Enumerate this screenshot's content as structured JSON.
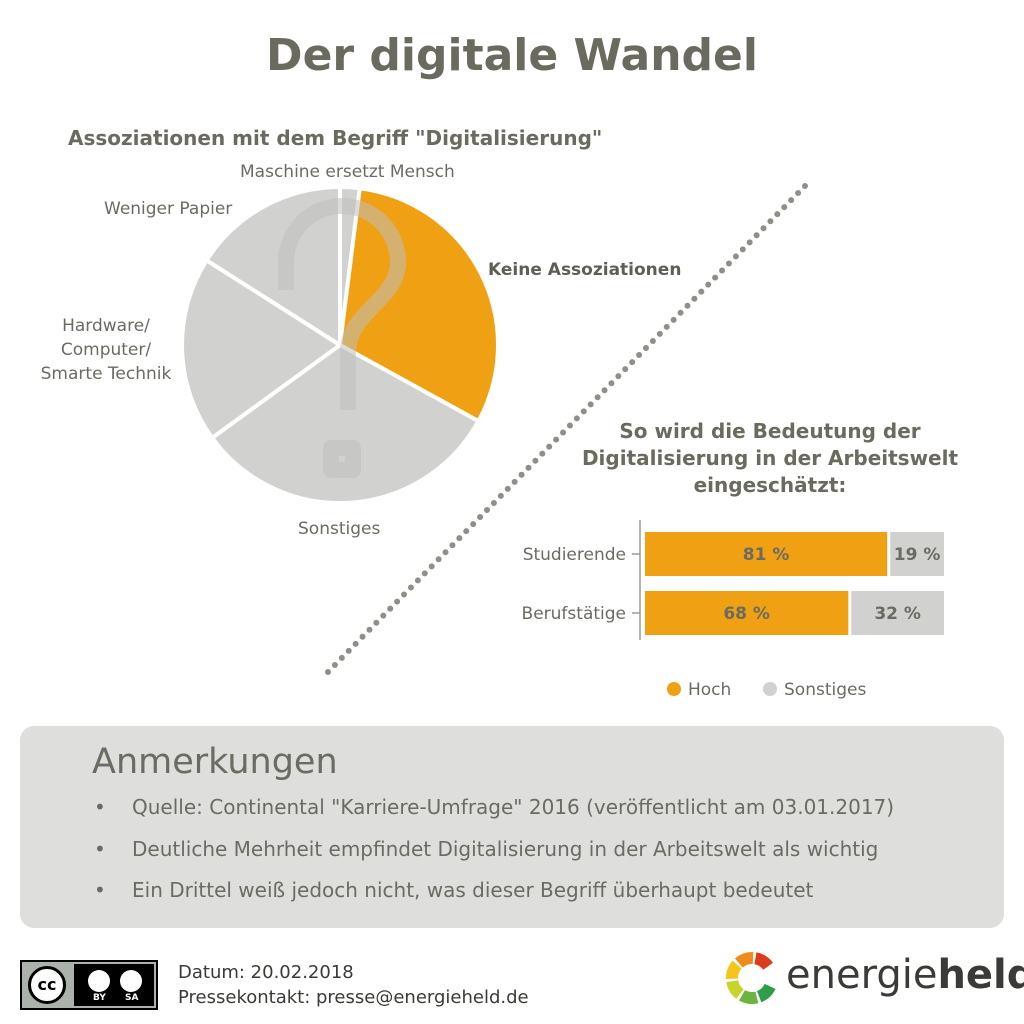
{
  "title": "Der digitale Wandel",
  "colors": {
    "orange": "#f0a013",
    "gray": "#d1d1d0",
    "text": "#6b6b62",
    "dots": "#8f8f88"
  },
  "chart_data": [
    {
      "type": "pie",
      "title": "Assoziationen mit dem Begriff \"Digitalisierung\"",
      "slices": [
        {
          "label": "Maschine ersetzt Mensch",
          "value": 2,
          "color": "#d1d1d0",
          "highlight": false
        },
        {
          "label": "Keine Assoziationen",
          "value": 31,
          "color": "#f0a013",
          "highlight": true
        },
        {
          "label": "Sonstiges",
          "value": 32,
          "color": "#d1d1d0",
          "highlight": false
        },
        {
          "label": "Hardware/ Computer/ Smarte Technik",
          "value": 19,
          "color": "#d1d1d0",
          "highlight": false
        },
        {
          "label": "Weniger Papier",
          "value": 16,
          "color": "#d1d1d0",
          "highlight": false
        }
      ]
    },
    {
      "type": "bar",
      "stacked": true,
      "orientation": "horizontal",
      "title": "So wird die Bedeutung der Digitalisierung in der Arbeitswelt eingeschätzt:",
      "categories": [
        "Studierende",
        "Berufstätige"
      ],
      "series": [
        {
          "name": "Hoch",
          "values": [
            81,
            68
          ],
          "labels": [
            "81 %",
            "68 %"
          ],
          "color": "#f0a013"
        },
        {
          "name": "Sonstiges",
          "values": [
            19,
            32
          ],
          "labels": [
            "19 %",
            "32 %"
          ],
          "color": "#d1d1d0"
        }
      ],
      "xlim": [
        0,
        100
      ],
      "legend": "bottom"
    }
  ],
  "pie_labels": {
    "maschine": "Maschine ersetzt Mensch",
    "keine": "Keine Assoziationen",
    "weniger": "Weniger Papier",
    "hardware_1": "Hardware/",
    "hardware_2": "Computer/",
    "hardware_3": "Smarte Technik",
    "sonstiges": "Sonstiges"
  },
  "bar_title_lines": [
    "So wird die Bedeutung der",
    "Digitalisierung in der Arbeitswelt",
    "eingeschätzt:"
  ],
  "notes": {
    "title": "Anmerkungen",
    "items": [
      "Quelle: Continental \"Karriere-Umfrage\" 2016 (veröffentlicht am 03.01.2017)",
      "Deutliche Mehrheit empfindet Digitalisierung in der Arbeitswelt als wichtig",
      "Ein Drittel weiß jedoch nicht, was dieser Begriff überhaupt bedeutet"
    ]
  },
  "footer": {
    "date": "Datum: 20.02.2018",
    "contact": "Pressekontakt: presse@energieheld.de",
    "license": {
      "cc": "cc",
      "by": "BY",
      "sa": "SA"
    },
    "logo": {
      "part1": "energie",
      "part2": "held"
    },
    "logo_colors": [
      "#e03a1e",
      "#f08b1c",
      "#f5c51a",
      "#c7d42a",
      "#6db33f",
      "#2e9e48"
    ]
  },
  "icons": {
    "question": "question-mark-icon",
    "bullet": "bullet-icon"
  }
}
